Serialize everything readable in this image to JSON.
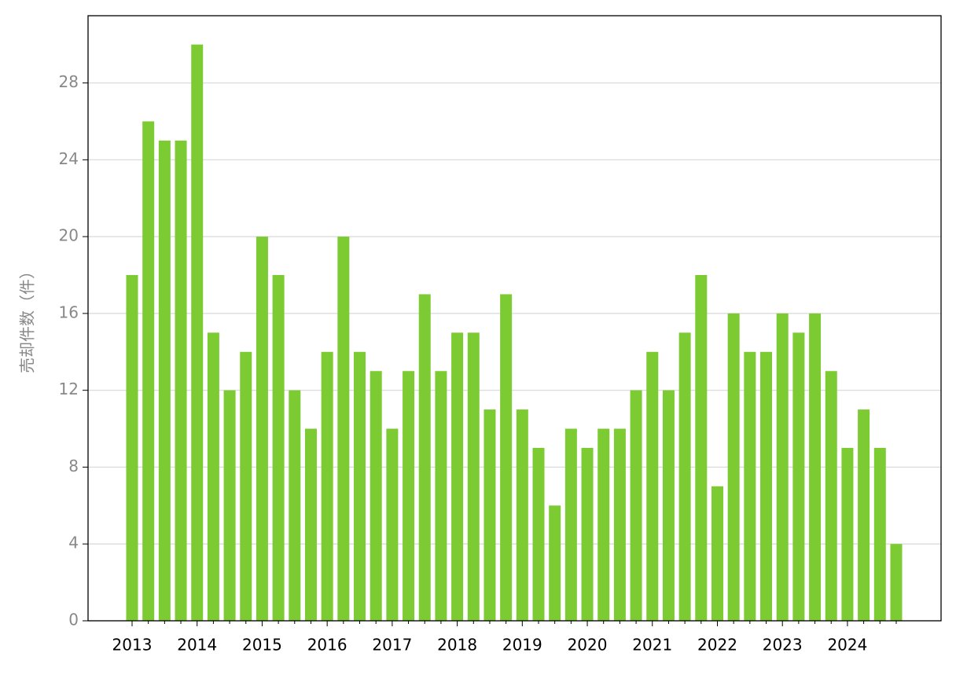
{
  "chart_data": {
    "type": "bar",
    "y_label": "売却件数（件）",
    "categories": [
      "2013",
      null,
      null,
      null,
      "2014",
      null,
      null,
      null,
      "2015",
      null,
      null,
      null,
      "2016",
      null,
      null,
      null,
      "2017",
      null,
      null,
      null,
      "2018",
      null,
      null,
      null,
      "2019",
      null,
      null,
      null,
      "2020",
      null,
      null,
      null,
      "2021",
      null,
      null,
      null,
      "2022",
      null,
      null,
      null,
      "2023",
      null,
      null,
      null,
      "2024",
      null,
      null,
      null
    ],
    "values": [
      18,
      26,
      25,
      25,
      30,
      15,
      12,
      14,
      20,
      18,
      12,
      10,
      14,
      20,
      14,
      13,
      10,
      13,
      17,
      13,
      15,
      15,
      11,
      17,
      11,
      9,
      6,
      10,
      9,
      10,
      10,
      12,
      14,
      12,
      15,
      18,
      7,
      16,
      14,
      14,
      16,
      15,
      16,
      13,
      9,
      11,
      9,
      4
    ],
    "color": "#7dcb33",
    "ylim": [
      0,
      31.5
    ],
    "yticks": [
      0,
      4,
      8,
      12,
      16,
      20,
      24,
      28
    ],
    "grid": true
  }
}
